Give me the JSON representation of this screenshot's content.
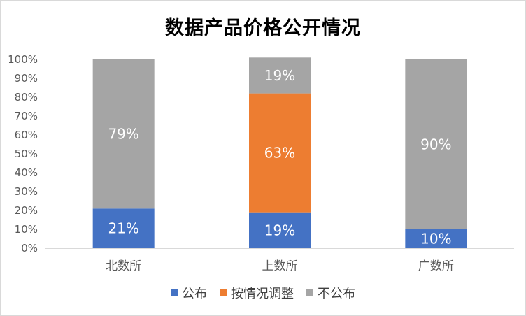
{
  "chart_data": {
    "type": "bar",
    "stacked": true,
    "title": "数据产品价格公开情况",
    "categories": [
      "北数所",
      "上数所",
      "广数所"
    ],
    "series": [
      {
        "name": "公布",
        "color": "#4472c4",
        "values": [
          21,
          19,
          10
        ]
      },
      {
        "name": "按情况调整",
        "color": "#ed7d31",
        "values": [
          0,
          63,
          0
        ]
      },
      {
        "name": "不公布",
        "color": "#a5a5a5",
        "values": [
          79,
          19,
          90
        ]
      }
    ],
    "data_labels": [
      [
        "21%",
        "",
        "79%"
      ],
      [
        "19%",
        "63%",
        "19%"
      ],
      [
        "10%",
        "",
        "90%"
      ]
    ],
    "ylim": [
      0,
      100
    ],
    "yticks": [
      "0%",
      "10%",
      "20%",
      "30%",
      "40%",
      "50%",
      "60%",
      "70%",
      "80%",
      "90%",
      "100%"
    ],
    "grid": false,
    "legend_position": "bottom"
  }
}
